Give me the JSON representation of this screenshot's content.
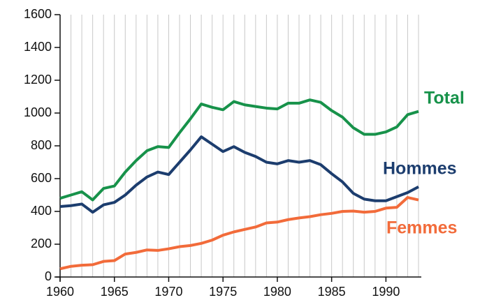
{
  "chart_data": {
    "type": "line",
    "x": [
      1960,
      1961,
      1962,
      1963,
      1964,
      1965,
      1966,
      1967,
      1968,
      1969,
      1970,
      1971,
      1972,
      1973,
      1974,
      1975,
      1976,
      1977,
      1978,
      1979,
      1980,
      1981,
      1982,
      1983,
      1984,
      1985,
      1986,
      1987,
      1988,
      1989,
      1990,
      1991,
      1992,
      1993
    ],
    "series": [
      {
        "name": "Total",
        "color": "#17924a",
        "values": [
          480,
          500,
          520,
          470,
          540,
          555,
          640,
          710,
          770,
          795,
          790,
          880,
          965,
          1055,
          1035,
          1020,
          1070,
          1050,
          1040,
          1030,
          1025,
          1060,
          1060,
          1080,
          1065,
          1015,
          975,
          910,
          870,
          870,
          885,
          915,
          990,
          1010
        ]
      },
      {
        "name": "Hommes",
        "color": "#1c3d6e",
        "values": [
          430,
          435,
          445,
          395,
          440,
          455,
          500,
          560,
          610,
          640,
          625,
          700,
          775,
          855,
          810,
          765,
          795,
          760,
          735,
          700,
          690,
          710,
          700,
          710,
          685,
          630,
          580,
          510,
          475,
          465,
          465,
          490,
          515,
          550
        ]
      },
      {
        "name": "Femmes",
        "color": "#f26b3a",
        "values": [
          50,
          65,
          72,
          75,
          95,
          100,
          140,
          150,
          165,
          162,
          172,
          185,
          192,
          205,
          225,
          255,
          275,
          290,
          305,
          330,
          335,
          350,
          360,
          368,
          380,
          388,
          400,
          402,
          395,
          400,
          420,
          425,
          485,
          470
        ]
      }
    ],
    "xlim": [
      1960,
      1993
    ],
    "xticks": [
      1960,
      1965,
      1970,
      1975,
      1980,
      1985,
      1990
    ],
    "ylim": [
      0,
      1600
    ],
    "yticks": [
      0,
      200,
      400,
      600,
      800,
      1000,
      1200,
      1400,
      1600
    ],
    "grid": "x-yearly"
  }
}
